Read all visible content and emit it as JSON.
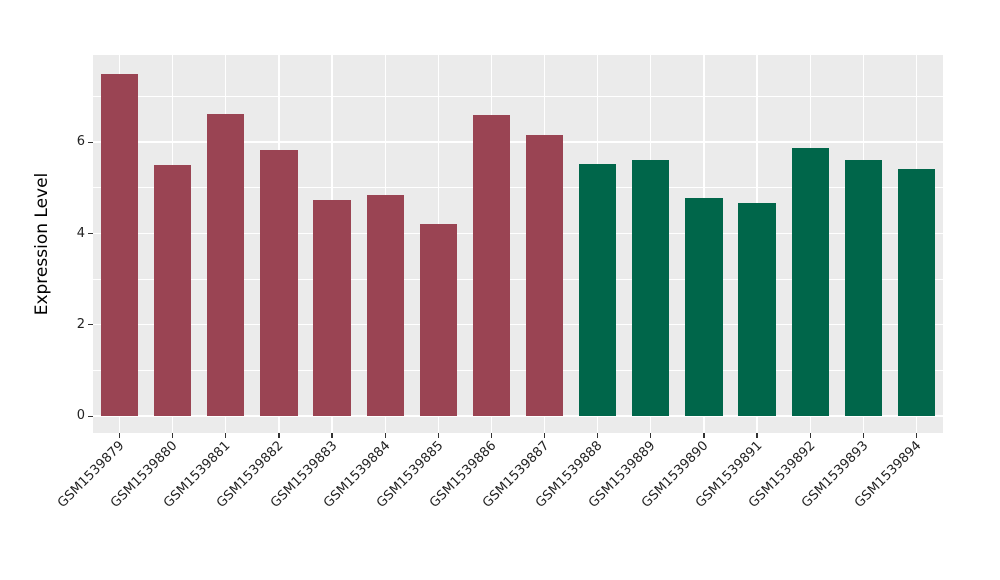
{
  "chart_data": {
    "type": "bar",
    "title": "",
    "xlabel": "",
    "ylabel": "Expression Level",
    "categories": [
      "GSM1539879",
      "GSM1539880",
      "GSM1539881",
      "GSM1539882",
      "GSM1539883",
      "GSM1539884",
      "GSM1539885",
      "GSM1539886",
      "GSM1539887",
      "GSM1539888",
      "GSM1539889",
      "GSM1539890",
      "GSM1539891",
      "GSM1539892",
      "GSM1539893",
      "GSM1539894"
    ],
    "values": [
      7.5,
      5.5,
      6.62,
      5.83,
      4.73,
      4.84,
      4.21,
      6.6,
      6.16,
      5.53,
      5.61,
      4.77,
      4.66,
      5.87,
      5.62,
      5.41
    ],
    "bar_colors": [
      "#9A4453",
      "#9A4453",
      "#9A4453",
      "#9A4453",
      "#9A4453",
      "#9A4453",
      "#9A4453",
      "#9A4453",
      "#9A4453",
      "#00664A",
      "#00664A",
      "#00664A",
      "#00664A",
      "#00664A",
      "#00664A",
      "#00664A"
    ],
    "group_colors": {
      "maroon_group": "#9A4453",
      "green_group": "#00664A"
    },
    "yticks": [
      0,
      2,
      4,
      6
    ],
    "minor_yticks": [
      1,
      3,
      5,
      7
    ],
    "ylim": [
      -0.37,
      7.91
    ],
    "bar_width_fraction": 0.7,
    "grid": "on",
    "legend": "none",
    "panel_bg": "#EBEBEB",
    "grid_color": "#FFFFFF",
    "axis_text_color": "#222222"
  }
}
